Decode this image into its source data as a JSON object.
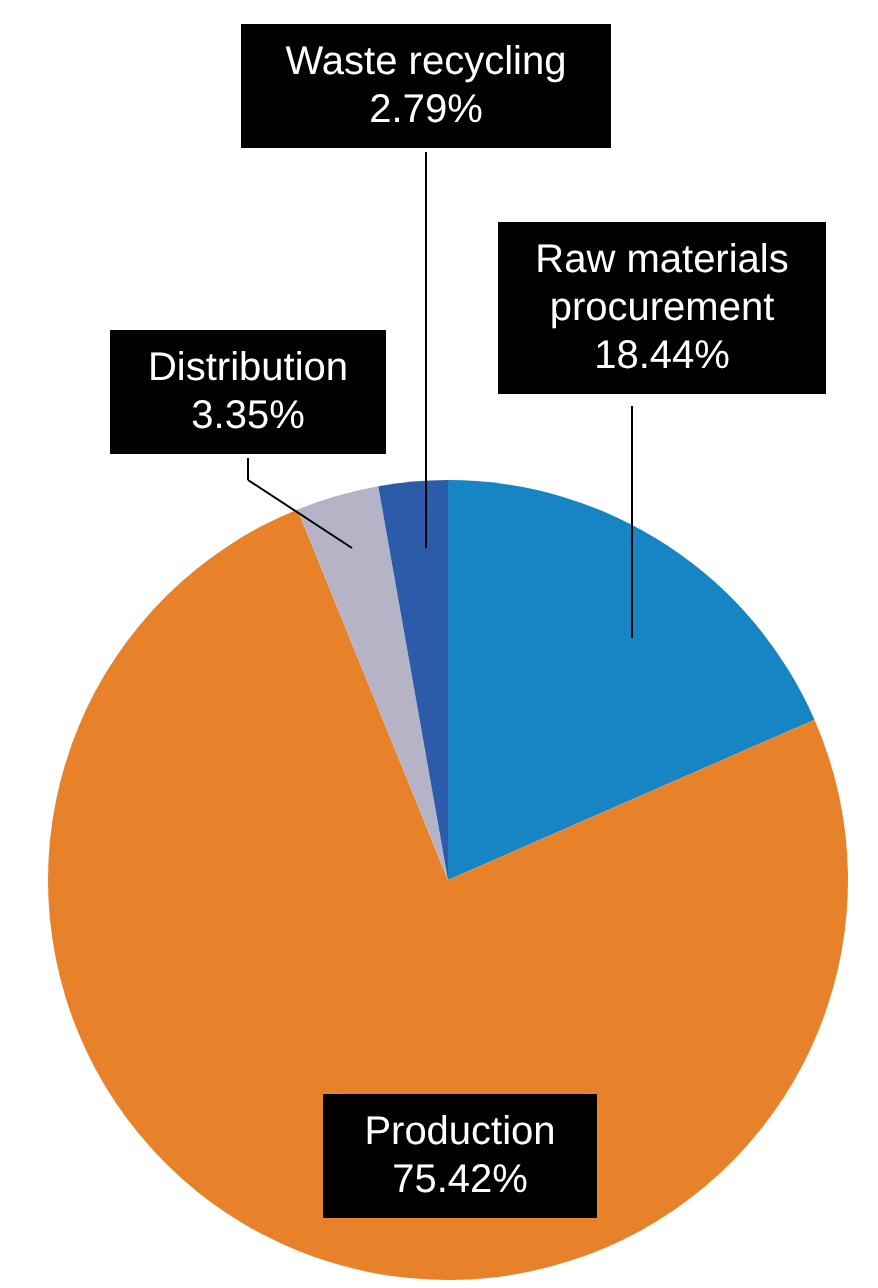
{
  "chart_data": {
    "type": "pie",
    "categories": [
      "Raw materials procurement",
      "Production",
      "Distribution",
      "Waste recycling"
    ],
    "values": [
      18.44,
      75.42,
      3.35,
      2.79
    ],
    "value_labels": [
      "18.44%",
      "75.42%",
      "3.35%",
      "2.79%"
    ],
    "colors": [
      "#1784c3",
      "#e8822a",
      "#b4b4c6",
      "#2c5ca9"
    ]
  }
}
